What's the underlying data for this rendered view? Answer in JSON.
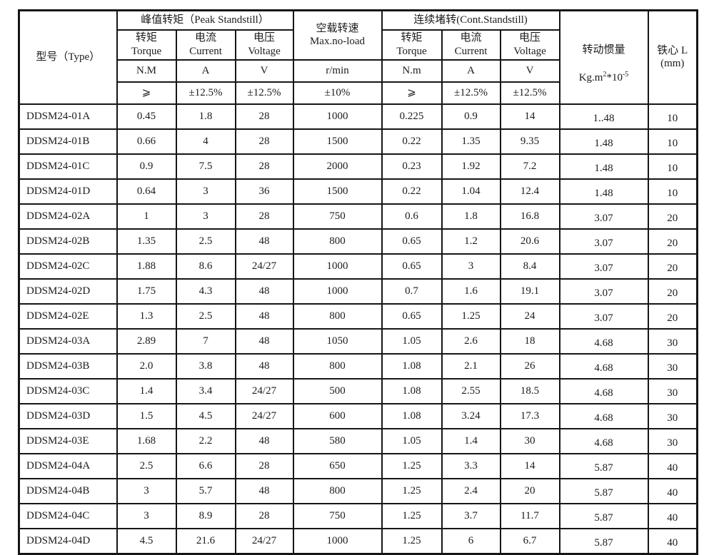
{
  "colors": {
    "border": "#161616",
    "text": "#1c1c1c",
    "background": "#ffffff"
  },
  "table": {
    "header": {
      "type_label": "型号（Type）",
      "peak_group": "峰值转矩（Peak Standstill）",
      "speed_label": "空载转速\nMax.no-load",
      "cont_group": "连续堵转(Cont.Standstill)",
      "inertia_cn": "转动惯量",
      "inertia_base": "Kg.m",
      "inertia_sup1": "2",
      "inertia_mid": "*10",
      "inertia_sup2": "-5",
      "core_label": "铁心 L\n(mm)",
      "peak_cols": [
        {
          "name": "转矩\nTorque",
          "unit": "N.M",
          "tol": "⩾"
        },
        {
          "name": "电流\nCurrent",
          "unit": "A",
          "tol": "±12.5%"
        },
        {
          "name": "电压\nVoltage",
          "unit": "V",
          "tol": "±12.5%"
        }
      ],
      "speed_unit": "r/min",
      "speed_tol": "±10%",
      "cont_cols": [
        {
          "name": "转矩\nTorque",
          "unit": "N.m",
          "tol": "⩾"
        },
        {
          "name": "电流\nCurrent",
          "unit": "A",
          "tol": "±12.5%"
        },
        {
          "name": "电压\nVoltage",
          "unit": "V",
          "tol": "±12.5%"
        }
      ]
    },
    "rows": [
      [
        "DDSM24-01A",
        "0.45",
        "1.8",
        "28",
        "1000",
        "0.225",
        "0.9",
        "14",
        "1..48",
        "10"
      ],
      [
        "DDSM24-01B",
        "0.66",
        "4",
        "28",
        "1500",
        "0.22",
        "1.35",
        "9.35",
        "1.48",
        "10"
      ],
      [
        "DDSM24-01C",
        "0.9",
        "7.5",
        "28",
        "2000",
        "0.23",
        "1.92",
        "7.2",
        "1.48",
        "10"
      ],
      [
        "DDSM24-01D",
        "0.64",
        "3",
        "36",
        "1500",
        "0.22",
        "1.04",
        "12.4",
        "1.48",
        "10"
      ],
      [
        "DDSM24-02A",
        "1",
        "3",
        "28",
        "750",
        "0.6",
        "1.8",
        "16.8",
        "3.07",
        "20"
      ],
      [
        "DDSM24-02B",
        "1.35",
        "2.5",
        "48",
        "800",
        "0.65",
        "1.2",
        "20.6",
        "3.07",
        "20"
      ],
      [
        "DDSM24-02C",
        "1.88",
        "8.6",
        "24/27",
        "1000",
        "0.65",
        "3",
        "8.4",
        "3.07",
        "20"
      ],
      [
        "DDSM24-02D",
        "1.75",
        "4.3",
        "48",
        "1000",
        "0.7",
        "1.6",
        "19.1",
        "3.07",
        "20"
      ],
      [
        "DDSM24-02E",
        "1.3",
        "2.5",
        "48",
        "800",
        "0.65",
        "1.25",
        "24",
        "3.07",
        "20"
      ],
      [
        "DDSM24-03A",
        "2.89",
        "7",
        "48",
        "1050",
        "1.05",
        "2.6",
        "18",
        "4.68",
        "30"
      ],
      [
        "DDSM24-03B",
        "2.0",
        "3.8",
        "48",
        "800",
        "1.08",
        "2.1",
        "26",
        "4.68",
        "30"
      ],
      [
        "DDSM24-03C",
        "1.4",
        "3.4",
        "24/27",
        "500",
        "1.08",
        "2.55",
        "18.5",
        "4.68",
        "30"
      ],
      [
        "DDSM24-03D",
        "1.5",
        "4.5",
        "24/27",
        "600",
        "1.08",
        "3.24",
        "17.3",
        "4.68",
        "30"
      ],
      [
        "DDSM24-03E",
        "1.68",
        "2.2",
        "48",
        "580",
        "1.05",
        "1.4",
        "30",
        "4.68",
        "30"
      ],
      [
        "DDSM24-04A",
        "2.5",
        "6.6",
        "28",
        "650",
        "1.25",
        "3.3",
        "14",
        "5.87",
        "40"
      ],
      [
        "DDSM24-04B",
        "3",
        "5.7",
        "48",
        "800",
        "1.25",
        "2.4",
        "20",
        "5.87",
        "40"
      ],
      [
        "DDSM24-04C",
        "3",
        "8.9",
        "28",
        "750",
        "1.25",
        "3.7",
        "11.7",
        "5.87",
        "40"
      ],
      [
        "DDSM24-04D",
        "4.5",
        "21.6",
        "24/27",
        "1000",
        "1.25",
        "6",
        "6.7",
        "5.87",
        "40"
      ]
    ]
  }
}
